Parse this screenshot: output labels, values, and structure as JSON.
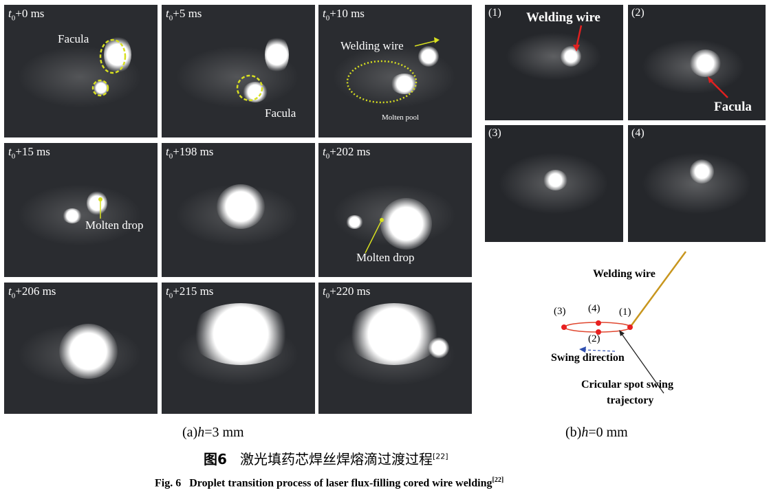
{
  "panels_a": [
    {
      "label_sub": "0",
      "label": "+0 ms",
      "annotations": [
        "Facula"
      ]
    },
    {
      "label_sub": "0",
      "label": "+5 ms",
      "annotations": [
        "Facula"
      ]
    },
    {
      "label_sub": "0",
      "label": "+10 ms",
      "annotations": [
        "Welding wire",
        "Molten pool"
      ]
    },
    {
      "label_sub": "0",
      "label": "+15 ms",
      "annotations": [
        "Molten drop"
      ]
    },
    {
      "label_sub": "0",
      "label": "+198 ms",
      "annotations": []
    },
    {
      "label_sub": "0",
      "label": "+202 ms",
      "annotations": [
        "Molten drop"
      ]
    },
    {
      "label_sub": "0",
      "label": "+206 ms",
      "annotations": []
    },
    {
      "label_sub": "0",
      "label": "+215 ms",
      "annotations": []
    },
    {
      "label_sub": "0",
      "label": "+220 ms",
      "annotations": []
    }
  ],
  "label_prefix": "t",
  "panels_b": [
    {
      "label": "(1)",
      "annotation": "Welding wire"
    },
    {
      "label": "(2)",
      "annotation": "Facula"
    },
    {
      "label": "(3)"
    },
    {
      "label": "(4)"
    }
  ],
  "diagram": {
    "wire_label": "Welding wire",
    "points": [
      "(1)",
      "(2)",
      "(3)",
      "(4)"
    ],
    "swing_label": "Swing direction",
    "trajectory_label_1": "Cricular spot swing",
    "trajectory_label_2": "trajectory",
    "colors": {
      "wire": "#c8961e",
      "trajectory": "#e0462e",
      "arrow": "#3050b0"
    }
  },
  "captions": {
    "sub_a_prefix": "(a)",
    "sub_a_var": "h",
    "sub_a_value": "=3 mm",
    "sub_b_prefix": "(b)",
    "sub_b_var": "h",
    "sub_b_value": "=0 mm",
    "title_cn_num": "图6",
    "title_cn": "激光填药芯焊丝焊熔滴过渡过程",
    "ref": "[22]",
    "title_en_num": "Fig. 6",
    "title_en": "Droplet transition process of laser flux-filling cored wire welding"
  }
}
